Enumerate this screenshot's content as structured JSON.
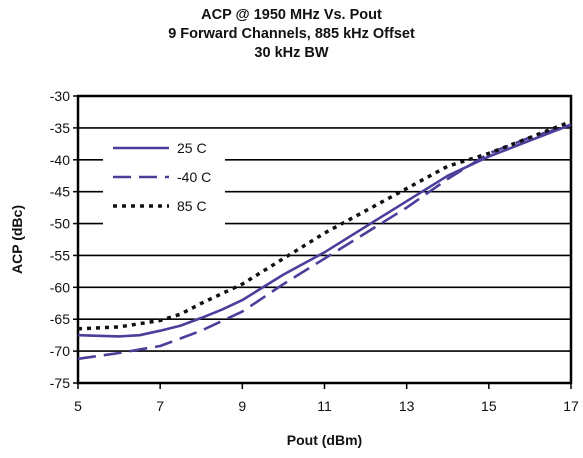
{
  "chart_data": {
    "type": "line",
    "title": "ACP @ 1950 MHz Vs. Pout",
    "subtitle_lines": [
      "9 Forward Channels, 885 kHz Offset",
      "30 kHz BW"
    ],
    "xlabel": "Pout (dBm)",
    "ylabel": "ACP (dBc)",
    "xlim": [
      5,
      17
    ],
    "ylim": [
      -75,
      -30
    ],
    "x_ticks": [
      5,
      7,
      9,
      11,
      13,
      15,
      17
    ],
    "y_ticks": [
      -30,
      -35,
      -40,
      -45,
      -50,
      -55,
      -60,
      -65,
      -70,
      -75
    ],
    "grid": "horizontal",
    "legend_position": "top-left",
    "series": [
      {
        "name": "25 C",
        "style": "solid",
        "color": "#4a3f9a",
        "x": [
          5,
          6,
          6.5,
          7,
          7.5,
          8,
          8.5,
          9,
          10,
          11,
          12,
          13,
          14,
          15,
          16,
          17
        ],
        "y": [
          -67.5,
          -67.7,
          -67.5,
          -66.8,
          -66,
          -64.8,
          -63.5,
          -62,
          -58,
          -54.5,
          -50.5,
          -46.5,
          -42.5,
          -39.5,
          -37,
          -34.5
        ]
      },
      {
        "name": "-40 C",
        "style": "dashed",
        "color": "#4a3f9a",
        "x": [
          5,
          6,
          7,
          7.5,
          8,
          8.5,
          9,
          10,
          11,
          12,
          13,
          14,
          15,
          16,
          17
        ],
        "y": [
          -71.2,
          -70.3,
          -69.2,
          -68,
          -66.8,
          -65.3,
          -63.8,
          -59.5,
          -55.5,
          -51.5,
          -47.5,
          -43,
          -39,
          -36.5,
          -34.5
        ]
      },
      {
        "name": "85 C",
        "style": "dotted",
        "color": "#111111",
        "x": [
          5,
          6,
          7,
          7.5,
          8,
          8.5,
          9,
          10,
          11,
          12,
          13,
          14,
          15,
          16,
          17
        ],
        "y": [
          -66.5,
          -66.2,
          -65.2,
          -64.2,
          -62.5,
          -61,
          -59.5,
          -55.5,
          -51.5,
          -48,
          -44.5,
          -41,
          -39,
          -36.5,
          -34
        ]
      }
    ]
  }
}
